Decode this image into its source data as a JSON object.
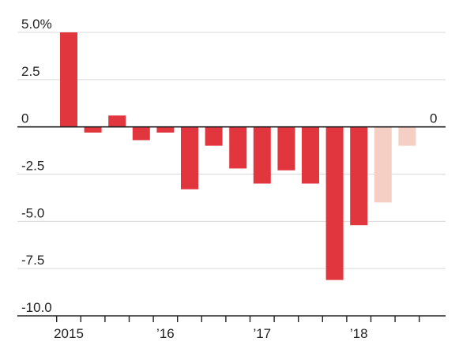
{
  "chart_data": {
    "type": "bar",
    "title": "",
    "xlabel": "",
    "ylabel": "",
    "ylim": [
      -10,
      5
    ],
    "y_ticks": [
      {
        "value": 5.0,
        "label": "5.0%"
      },
      {
        "value": 2.5,
        "label": "2.5"
      },
      {
        "value": 0,
        "label": "0"
      },
      {
        "value": -2.5,
        "label": "-2.5"
      },
      {
        "value": -5.0,
        "label": "-5.0"
      },
      {
        "value": -7.5,
        "label": "-7.5"
      },
      {
        "value": -10.0,
        "label": "-10.0"
      }
    ],
    "x_tick_labels": [
      {
        "index": 0,
        "label": "2015"
      },
      {
        "index": 4,
        "label": "’16"
      },
      {
        "index": 8,
        "label": "’17"
      },
      {
        "index": 12,
        "label": "’18"
      }
    ],
    "zero_line_end_label": "0",
    "grid": true,
    "series": [
      {
        "values": [
          5.0,
          -0.3,
          0.6,
          -0.7,
          -0.3,
          -3.3,
          -1.0,
          -2.2,
          -3.0,
          -2.3,
          -3.0,
          -8.1,
          -5.2,
          -4.0,
          -1.0
        ],
        "kinds": [
          "actual",
          "actual",
          "actual",
          "actual",
          "actual",
          "actual",
          "actual",
          "actual",
          "actual",
          "actual",
          "actual",
          "actual",
          "actual",
          "forecast",
          "forecast"
        ]
      }
    ],
    "colors": {
      "actual": "#e2363f",
      "forecast": "#f6cfc4",
      "gridline": "#d9d9d9",
      "zero_line": "#222222",
      "axis": "#222222"
    }
  }
}
